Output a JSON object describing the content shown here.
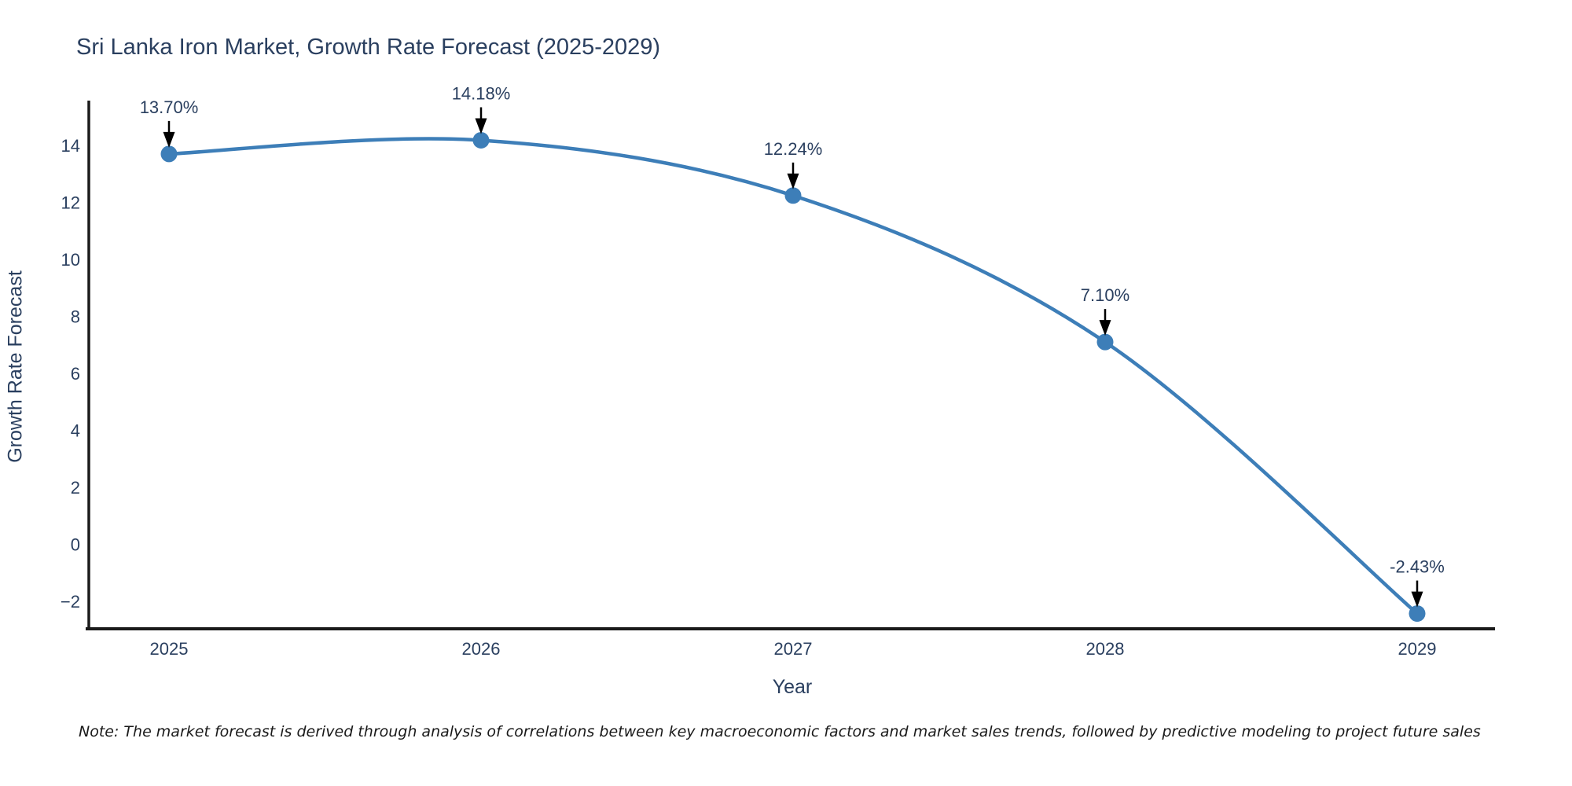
{
  "chart": {
    "title": "Sri Lanka Iron Market, Growth Rate Forecast (2025-2029)",
    "xlabel": "Year",
    "ylabel": "Growth Rate Forecast",
    "note": "Note: The market forecast is derived through analysis of correlations between key macroeconomic factors and market sales trends, followed by predictive modeling to project future sales"
  },
  "chart_data": {
    "type": "line",
    "title": "Sri Lanka Iron Market, Growth Rate Forecast (2025-2029)",
    "xlabel": "Year",
    "ylabel": "Growth Rate Forecast",
    "x": [
      2025,
      2026,
      2027,
      2028,
      2029
    ],
    "values": [
      13.7,
      14.18,
      12.24,
      7.1,
      -2.43
    ],
    "point_labels": [
      "13.70%",
      "14.18%",
      "12.24%",
      "7.10%",
      "-2.43%"
    ],
    "yticks": [
      14,
      12,
      10,
      8,
      6,
      4,
      2,
      0,
      -2
    ],
    "ylim": [
      -3.0,
      15.6
    ],
    "xlim": [
      2024.74,
      2029.25
    ],
    "line_shape": "spline",
    "grid": false,
    "legend_visible": false,
    "colors": {
      "line": "#3d7eb8",
      "marker": "#3d7eb8",
      "axis": "#1a1a1a",
      "tick_text": "#2a3f5f",
      "annotation_text": "#2a3f5f",
      "arrow": "#000000",
      "background": "#ffffff"
    }
  }
}
